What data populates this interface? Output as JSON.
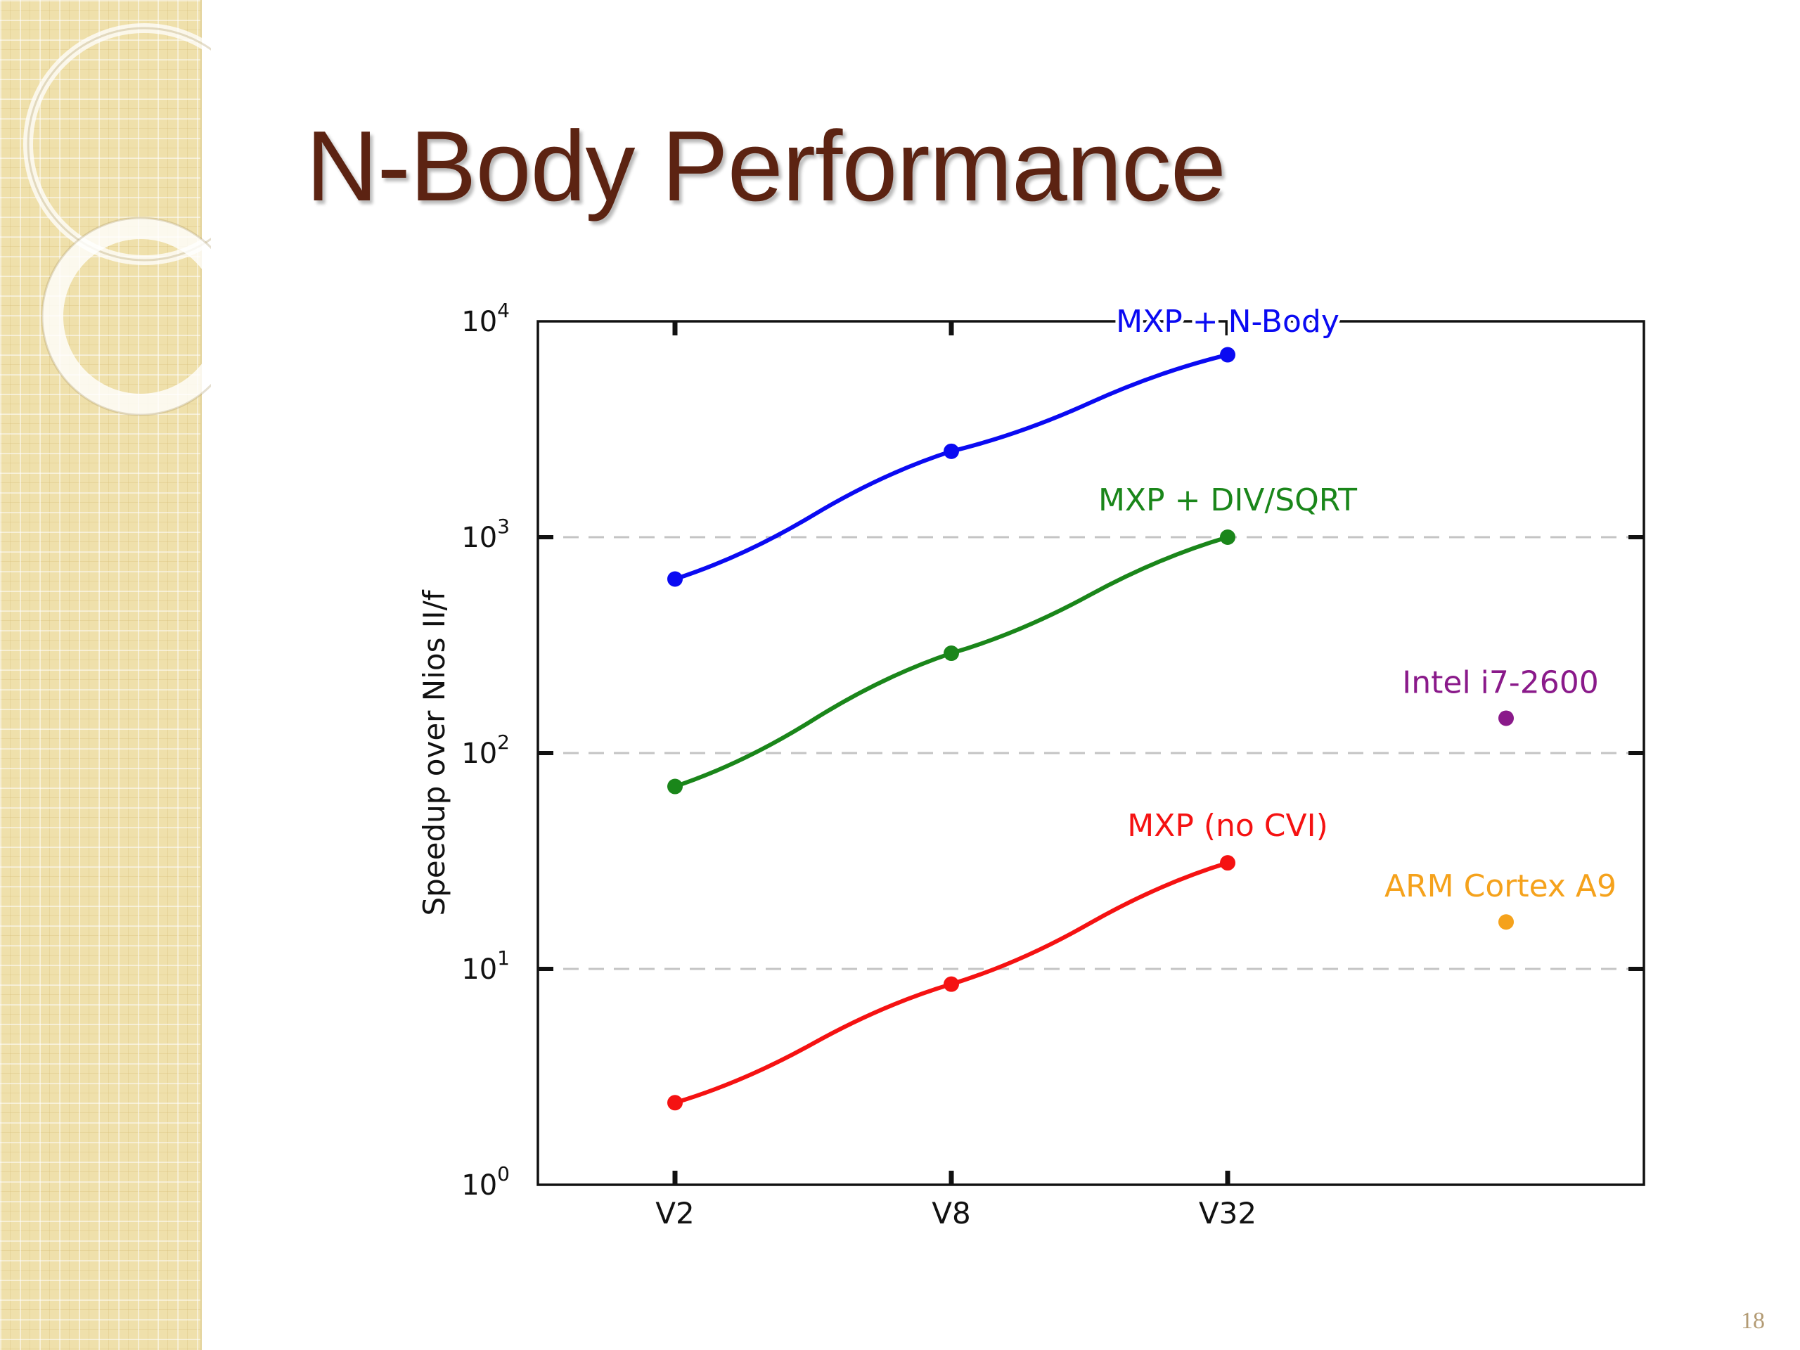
{
  "slide": {
    "title": "N-Body Performance",
    "page_number": "18"
  },
  "chart_data": {
    "type": "line",
    "scale": "log",
    "categories": [
      "V2",
      "V8",
      "V32"
    ],
    "ylabel": "Speedup over Nios II/f",
    "xlabel": "",
    "ylim": [
      1,
      10000
    ],
    "yticks": [
      {
        "value": 1,
        "base": "10",
        "exp": "0"
      },
      {
        "value": 10,
        "base": "10",
        "exp": "1"
      },
      {
        "value": 100,
        "base": "10",
        "exp": "2"
      },
      {
        "value": 1000,
        "base": "10",
        "exp": "3"
      },
      {
        "value": 10000,
        "base": "10",
        "exp": "4"
      }
    ],
    "grid": "horizontal dashed at 10^1, 10^2, 10^3",
    "legend": "none (series labelled inline)",
    "series": [
      {
        "name": "MXP + N-Body",
        "color": "#0a0af2",
        "values": [
          640,
          2500,
          7000
        ]
      },
      {
        "name": "MXP + DIV/SQRT",
        "color": "#1a861a",
        "values": [
          70,
          290,
          1000
        ]
      },
      {
        "name": "MXP (no CVI)",
        "color": "#f51212",
        "values": [
          2.4,
          8.5,
          31
        ]
      }
    ],
    "points": [
      {
        "name": "Intel i7-2600",
        "color": "#8a1a8a",
        "value": 145
      },
      {
        "name": "ARM Cortex A9",
        "color": "#f5a21c",
        "value": 16.5
      }
    ]
  }
}
